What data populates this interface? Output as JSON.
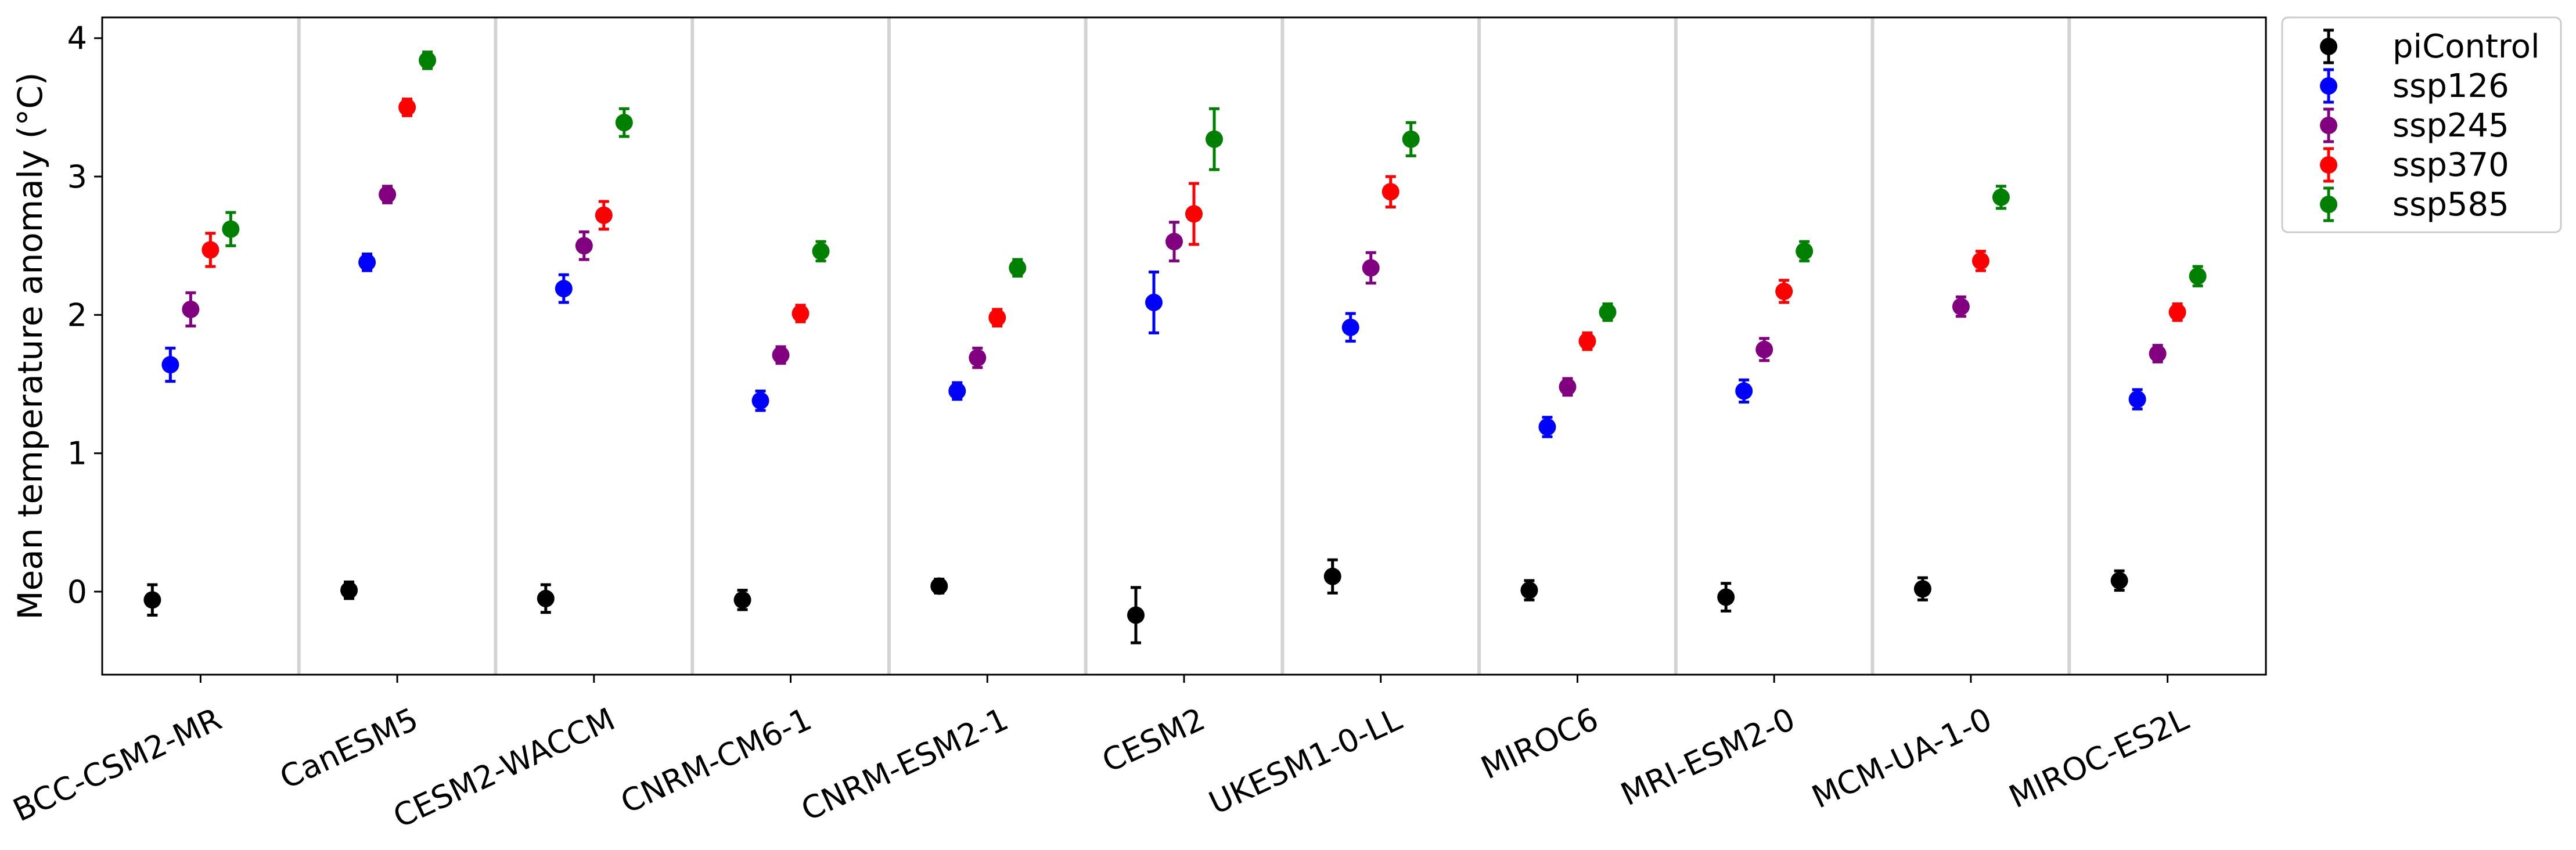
{
  "chart_data": {
    "type": "scatter",
    "title": "",
    "xlabel": "",
    "ylabel": "Mean temperature anomaly (°C)",
    "ylim": [
      -0.6,
      4.15
    ],
    "yticks": [
      0,
      1,
      2,
      3,
      4
    ],
    "grid": false,
    "legend_position": "outside-upper-right",
    "categories": [
      "BCC-CSM2-MR",
      "CanESM5",
      "CESM2-WACCM",
      "CNRM-CM6-1",
      "CNRM-ESM2-1",
      "CESM2",
      "UKESM1-0-LL",
      "MIROC6",
      "MRI-ESM2-0",
      "MCM-UA-1-0",
      "MIROC-ES2L"
    ],
    "series": [
      {
        "name": "piControl",
        "color": "#000000",
        "values": [
          -0.06,
          0.01,
          -0.05,
          -0.06,
          0.04,
          -0.17,
          0.11,
          0.01,
          -0.04,
          0.02,
          0.08
        ],
        "errors": [
          0.11,
          0.06,
          0.1,
          0.07,
          0.05,
          0.2,
          0.12,
          0.07,
          0.1,
          0.08,
          0.07
        ]
      },
      {
        "name": "ssp126",
        "color": "#0000ff",
        "values": [
          1.64,
          2.38,
          2.19,
          1.38,
          1.45,
          2.09,
          1.91,
          1.19,
          1.45,
          null,
          1.39
        ],
        "errors": [
          0.12,
          0.06,
          0.1,
          0.07,
          0.06,
          0.22,
          0.1,
          0.07,
          0.08,
          null,
          0.07
        ]
      },
      {
        "name": "ssp245",
        "color": "#800080",
        "values": [
          2.04,
          2.87,
          2.5,
          1.71,
          1.69,
          2.53,
          2.34,
          1.48,
          1.75,
          2.06,
          1.72
        ],
        "errors": [
          0.12,
          0.06,
          0.1,
          0.06,
          0.07,
          0.14,
          0.11,
          0.06,
          0.08,
          0.07,
          0.06
        ]
      },
      {
        "name": "ssp370",
        "color": "#ff0000",
        "values": [
          2.47,
          3.5,
          2.72,
          2.01,
          1.98,
          2.73,
          2.89,
          1.81,
          2.17,
          2.39,
          2.02
        ],
        "errors": [
          0.12,
          0.06,
          0.1,
          0.06,
          0.06,
          0.22,
          0.11,
          0.06,
          0.08,
          0.07,
          0.06
        ]
      },
      {
        "name": "ssp585",
        "color": "#008000",
        "values": [
          2.62,
          3.84,
          3.39,
          2.46,
          2.34,
          3.27,
          3.27,
          2.02,
          2.46,
          2.85,
          2.28
        ],
        "errors": [
          0.12,
          0.06,
          0.1,
          0.07,
          0.06,
          0.22,
          0.12,
          0.06,
          0.07,
          0.08,
          0.07
        ]
      }
    ],
    "separator_color": "#d3d3d3"
  }
}
